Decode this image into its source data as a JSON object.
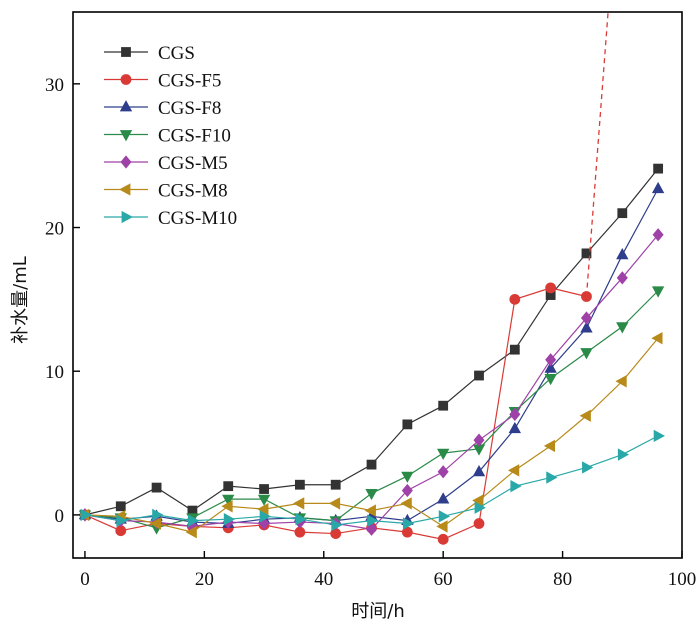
{
  "chart_data": {
    "type": "line",
    "title": "",
    "xlabel": "时间/h",
    "ylabel": "补水量/mL",
    "xlim": [
      -2,
      100
    ],
    "ylim": [
      -3,
      35
    ],
    "x_ticks": [
      0,
      20,
      40,
      60,
      80,
      100
    ],
    "y_ticks": [
      0,
      10,
      20,
      30
    ],
    "x_tick_labels": [
      "0",
      "20",
      "40",
      "60",
      "80",
      "100"
    ],
    "y_tick_labels": [
      "0",
      "10",
      "20",
      "30"
    ],
    "grid": false,
    "legend_position": "top-left",
    "series": [
      {
        "name": "CGS",
        "color": "#333333",
        "marker": "square",
        "x": [
          0,
          6,
          12,
          18,
          24,
          30,
          36,
          42,
          48,
          54,
          60,
          66,
          72,
          78,
          84,
          90,
          96
        ],
        "y": [
          0,
          0.6,
          1.9,
          0.3,
          2.0,
          1.8,
          2.1,
          2.1,
          3.5,
          6.3,
          7.6,
          9.7,
          11.5,
          15.3,
          18.2,
          21.0,
          24.1
        ]
      },
      {
        "name": "CGS-F5",
        "color": "#d93a35",
        "marker": "circle",
        "x": [
          0,
          6,
          12,
          18,
          24,
          30,
          36,
          42,
          48,
          54,
          60,
          66,
          72,
          78,
          84
        ],
        "y": [
          0,
          -1.1,
          -0.6,
          -0.8,
          -0.9,
          -0.7,
          -1.2,
          -1.3,
          -0.9,
          -1.2,
          -1.7,
          -0.6,
          15.0,
          15.8,
          15.2
        ],
        "extension": {
          "x": [
            84,
            90
          ],
          "y": [
            15.2,
            48
          ]
        }
      },
      {
        "name": "CGS-F8",
        "color": "#2e3d8c",
        "marker": "triangle-up",
        "x": [
          0,
          6,
          12,
          18,
          24,
          30,
          36,
          42,
          48,
          54,
          60,
          66,
          72,
          78,
          84,
          90,
          96
        ],
        "y": [
          0,
          -0.3,
          -0.1,
          -0.5,
          -0.6,
          -0.3,
          -0.2,
          -0.4,
          -0.1,
          -0.4,
          1.1,
          3.0,
          6.0,
          10.2,
          13.0,
          18.1,
          22.7
        ]
      },
      {
        "name": "CGS-F10",
        "color": "#2a8a48",
        "marker": "triangle-down",
        "x": [
          0,
          6,
          12,
          18,
          24,
          30,
          36,
          42,
          48,
          54,
          60,
          66,
          72,
          78,
          84,
          90,
          96
        ],
        "y": [
          0,
          -0.2,
          -0.9,
          -0.2,
          1.1,
          1.1,
          -0.2,
          -0.4,
          1.5,
          2.7,
          4.3,
          4.6,
          7.2,
          9.5,
          11.3,
          13.1,
          15.6
        ]
      },
      {
        "name": "CGS-M5",
        "color": "#9f42a8",
        "marker": "diamond",
        "x": [
          0,
          6,
          12,
          18,
          24,
          30,
          36,
          42,
          48,
          54,
          60,
          66,
          72,
          78,
          84,
          90,
          96
        ],
        "y": [
          0,
          -0.4,
          -0.5,
          -0.8,
          -0.5,
          -0.6,
          -0.5,
          -0.6,
          -1.0,
          1.7,
          3.0,
          5.2,
          7.0,
          10.8,
          13.7,
          16.5,
          19.5
        ]
      },
      {
        "name": "CGS-M8",
        "color": "#b88a1a",
        "marker": "triangle-left",
        "x": [
          0,
          6,
          12,
          18,
          24,
          30,
          36,
          42,
          48,
          54,
          60,
          66,
          72,
          78,
          84,
          90,
          96
        ],
        "y": [
          0,
          -0.1,
          -0.6,
          -1.2,
          0.6,
          0.4,
          0.8,
          0.8,
          0.3,
          0.8,
          -0.8,
          1.0,
          3.1,
          4.8,
          6.9,
          9.3,
          12.3
        ]
      },
      {
        "name": "CGS-M10",
        "color": "#2aa8a8",
        "marker": "triangle-right",
        "x": [
          0,
          6,
          12,
          18,
          24,
          30,
          36,
          42,
          48,
          54,
          60,
          66,
          72,
          78,
          84,
          90,
          96
        ],
        "y": [
          0,
          -0.4,
          0.0,
          -0.4,
          -0.3,
          -0.1,
          -0.3,
          -0.7,
          -0.4,
          -0.6,
          -0.1,
          0.5,
          2.0,
          2.6,
          3.3,
          4.2,
          5.5
        ]
      }
    ]
  }
}
